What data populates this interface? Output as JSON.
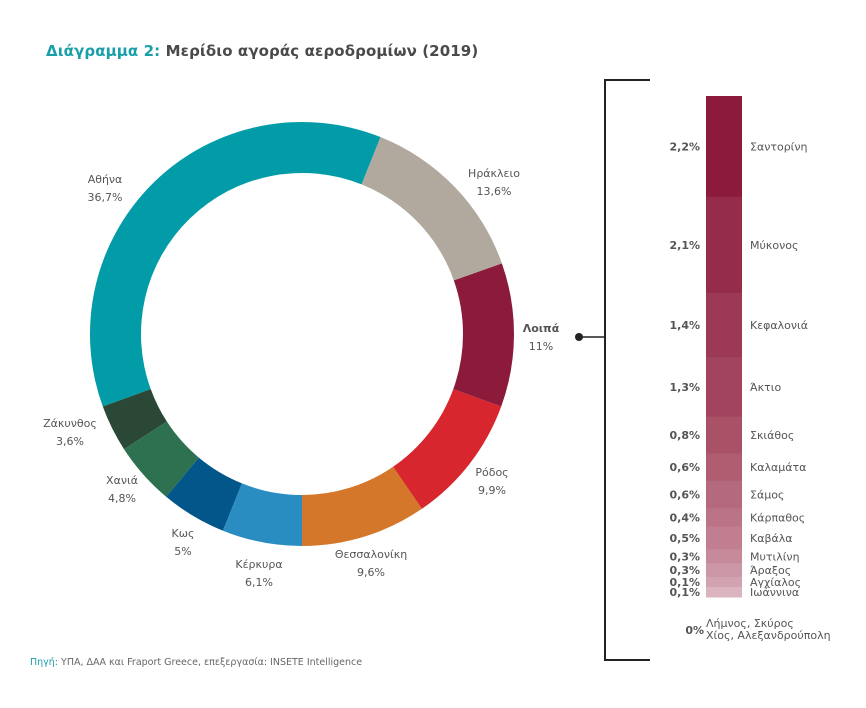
{
  "title": {
    "prefix": "Διάγραμμα 2:",
    "text": "Μερίδιο αγοράς αεροδρομίων (2019)"
  },
  "source": {
    "prefix": "Πηγή:",
    "text": "ΥΠΑ, ΔΑΑ και Fraport Greece, επεξεργασία: INSETE Intelligence"
  },
  "colors": {
    "accent": "#1a9faa",
    "bracket": "#222222"
  },
  "chart_data": [
    {
      "type": "pie",
      "variant": "donut",
      "title": "Μερίδιο αγοράς αεροδρομίων (2019)",
      "start": "bottom",
      "direction": "clockwise",
      "slices": [
        {
          "label": "Θεσσαλονίκη",
          "value": 9.6,
          "display": "9,6%",
          "color": "#d4772a"
        },
        {
          "label": "Ρόδος",
          "value": 9.9,
          "display": "9,9%",
          "color": "#d7262d"
        },
        {
          "label": "Λοιπά",
          "value": 11,
          "display": "11%",
          "color": "#8c1a3a",
          "bold": true
        },
        {
          "label": "Ηράκλειο",
          "value": 13.6,
          "display": "13,6%",
          "color": "#b1a99e"
        },
        {
          "label": "Αθήνα",
          "value": 36.7,
          "display": "36,7%",
          "color": "#019ca8"
        },
        {
          "label": "Ζάκυνθος",
          "value": 3.6,
          "display": "3,6%",
          "color": "#2a4835"
        },
        {
          "label": "Χανιά",
          "value": 4.8,
          "display": "4,8%",
          "color": "#2d7150"
        },
        {
          "label": "Κως",
          "value": 5,
          "display": "5%",
          "color": "#03568a"
        },
        {
          "label": "Κέρκυρα",
          "value": 6.1,
          "display": "6,1%",
          "color": "#2a8dc2"
        }
      ]
    },
    {
      "type": "bar",
      "variant": "stacked-vertical",
      "title": "Λοιπά (breakdown)",
      "segments": [
        {
          "label": "Σαντορίνη",
          "value": 2.2,
          "display": "2,2%",
          "color": "#8c1a3a"
        },
        {
          "label": "Μύκονος",
          "value": 2.1,
          "display": "2,1%",
          "color": "#952c4a"
        },
        {
          "label": "Κεφαλονιά",
          "value": 1.4,
          "display": "1,4%",
          "color": "#9c3a55"
        },
        {
          "label": "Άκτιο",
          "value": 1.3,
          "display": "1,3%",
          "color": "#a2445e"
        },
        {
          "label": "Σκιάθος",
          "value": 0.8,
          "display": "0,8%",
          "color": "#a95167"
        },
        {
          "label": "Καλαμάτα",
          "value": 0.6,
          "display": "0,6%",
          "color": "#b05d72"
        },
        {
          "label": "Σάμος",
          "value": 0.6,
          "display": "0,6%",
          "color": "#b5697c"
        },
        {
          "label": "Κάρπαθος",
          "value": 0.4,
          "display": "0,4%",
          "color": "#ba7486"
        },
        {
          "label": "Καβάλα",
          "value": 0.5,
          "display": "0,5%",
          "color": "#c07e90"
        },
        {
          "label": "Μυτιλίνη",
          "value": 0.3,
          "display": "0,3%",
          "color": "#c68a9a"
        },
        {
          "label": "Άραξος",
          "value": 0.3,
          "display": "0,3%",
          "color": "#cb96a5"
        },
        {
          "label": "Αγχίαλος",
          "value": 0.1,
          "display": "0,1%",
          "color": "#d1a3b0"
        },
        {
          "label": "Ιωάννινα",
          "value": 0.1,
          "display": "0,1%",
          "color": "#dab4be"
        }
      ],
      "zero_note": {
        "display": "0%",
        "lines": [
          "Λήμνος, Σκύρος",
          "Χίος, Αλεξανδρούπολη"
        ]
      }
    }
  ]
}
